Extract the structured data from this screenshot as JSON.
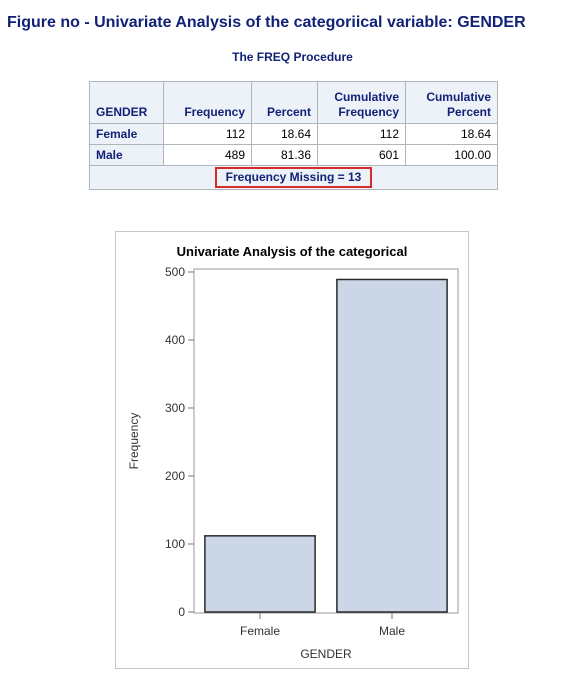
{
  "figure_title": "Figure no - Univariate Analysis of the categoriical variable: GENDER",
  "procedure_title": "The FREQ Procedure",
  "table": {
    "headers": {
      "gender": "GENDER",
      "frequency": "Frequency",
      "percent": "Percent",
      "cum_freq_line1": "Cumulative",
      "cum_freq_line2": "Frequency",
      "cum_pct_line1": "Cumulative",
      "cum_pct_line2": "Percent"
    },
    "rows": [
      {
        "gender": "Female",
        "frequency": "112",
        "percent": "18.64",
        "cum_frequency": "112",
        "cum_percent": "18.64"
      },
      {
        "gender": "Male",
        "frequency": "489",
        "percent": "81.36",
        "cum_frequency": "601",
        "cum_percent": "100.00"
      }
    ],
    "footer": "Frequency Missing = 13"
  },
  "colors": {
    "title_blue": "#112277",
    "header_bg": "#edf2f9",
    "bar_fill": "#cbd6e6",
    "bar_stroke": "#2a2a2a",
    "highlight_red": "#d72b2b"
  },
  "chart_data": {
    "type": "bar",
    "title": "Univariate Analysis of the categorical",
    "xlabel": "GENDER",
    "ylabel": "Frequency",
    "categories": [
      "Female",
      "Male"
    ],
    "values": [
      112,
      489
    ],
    "ylim": [
      0,
      500
    ],
    "yticks": [
      0,
      100,
      200,
      300,
      400,
      500
    ],
    "grid": false,
    "legend": "none"
  }
}
